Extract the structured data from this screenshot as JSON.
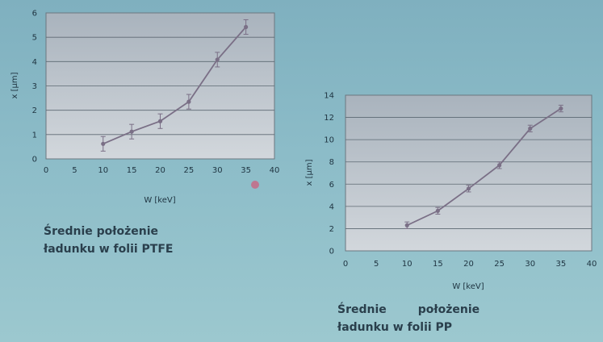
{
  "colors": {
    "plot_top": "#a9b3bd",
    "plot_bottom": "#d2d7dc",
    "line": "#7a6f86",
    "grid": "#5c6872",
    "text": "#1e3340"
  },
  "chart_data": [
    {
      "type": "line",
      "xlabel": "W [keV]",
      "ylabel": "x [μm]",
      "xlim": [
        0,
        40
      ],
      "ylim": [
        0,
        6
      ],
      "xticks": [
        0,
        5,
        10,
        15,
        20,
        25,
        30,
        35,
        40
      ],
      "yticks": [
        0,
        1,
        2,
        3,
        4,
        5,
        6
      ],
      "grid": true,
      "series": [
        {
          "x": [
            10,
            15,
            20,
            25,
            30,
            35
          ],
          "y": [
            0.62,
            1.12,
            1.55,
            2.35,
            4.08,
            5.42
          ],
          "error": [
            0.3,
            0.3,
            0.3,
            0.3,
            0.3,
            0.3
          ]
        }
      ],
      "caption_lines": [
        "Średnie położenie",
        "ładunku w folii PTFE"
      ]
    },
    {
      "type": "line",
      "xlabel": "W [keV]",
      "ylabel": "x [μm]",
      "xlim": [
        0,
        40
      ],
      "ylim": [
        0,
        14
      ],
      "xticks": [
        0,
        5,
        10,
        15,
        20,
        25,
        30,
        35,
        40
      ],
      "yticks": [
        0,
        2,
        4,
        6,
        8,
        10,
        12,
        14
      ],
      "grid": true,
      "series": [
        {
          "x": [
            10,
            15,
            20,
            25,
            30,
            35
          ],
          "y": [
            2.3,
            3.6,
            5.6,
            7.7,
            11.0,
            12.8
          ],
          "error": [
            0.3,
            0.3,
            0.3,
            0.3,
            0.3,
            0.3
          ]
        }
      ],
      "caption_lines": [
        "Średnie        położenie",
        "ładunku w folii PP"
      ]
    }
  ]
}
